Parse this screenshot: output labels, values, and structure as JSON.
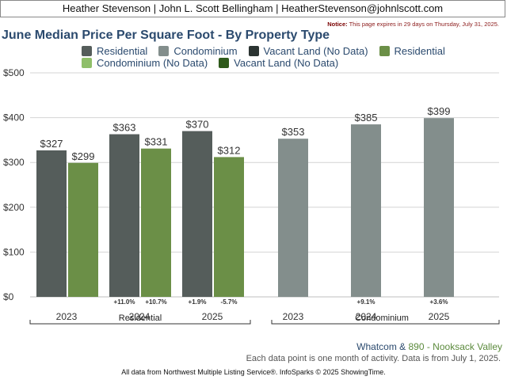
{
  "header": {
    "agent_line": "Heather Stevenson | John L. Scott Bellingham | HeatherStevenson@johnlscott.com",
    "notice_label": "Notice:",
    "notice_text": "This page expires in 29 days on Thursday, July 31, 2025."
  },
  "legend": {
    "items": [
      {
        "label": "Residential",
        "color": "#555d5b"
      },
      {
        "label": "Condominium",
        "color": "#838e8c"
      },
      {
        "label": "Vacant Land (No Data)",
        "color": "#2b3432"
      },
      {
        "label": "Residential",
        "color": "#6b8f47"
      },
      {
        "label": "Condominium (No Data)",
        "color": "#8fbf6a"
      },
      {
        "label": "Vacant Land (No Data)",
        "color": "#2f5a1b"
      }
    ]
  },
  "chart_data": {
    "type": "bar",
    "title": "June Median Price Per Square Foot - By Property Type",
    "y_ticks": [
      "$500",
      "$400",
      "$300",
      "$200",
      "$100",
      "$0"
    ],
    "ylim": [
      0,
      500
    ],
    "grid": true,
    "groups": [
      {
        "name": "Residential",
        "categories": [
          "2023",
          "2024",
          "2025"
        ],
        "series": [
          {
            "name": "Residential",
            "color": "#555d5b",
            "values": [
              327,
              363,
              370
            ],
            "labels": [
              "$327",
              "$363",
              "$370"
            ],
            "changes": [
              "",
              "+11.0%",
              "+1.9%"
            ]
          },
          {
            "name": "Residential",
            "color": "#6b8f47",
            "values": [
              299,
              331,
              312
            ],
            "labels": [
              "$299",
              "$331",
              "$312"
            ],
            "changes": [
              "",
              "+10.7%",
              "-5.7%"
            ]
          }
        ]
      },
      {
        "name": "Condominium",
        "categories": [
          "2023",
          "2024",
          "2025"
        ],
        "series": [
          {
            "name": "Condominium",
            "color": "#838e8c",
            "values": [
              353,
              385,
              399
            ],
            "labels": [
              "$353",
              "$385",
              "$399"
            ],
            "changes": [
              "",
              "+9.1%",
              "+3.6%"
            ]
          }
        ]
      }
    ]
  },
  "footer": {
    "location_a": "Whatcom",
    "location_amp": " & ",
    "location_b": "890 - Nooksack Valley",
    "data_note": "Each data point is one month of activity. Data is from July 1, 2025.",
    "source": "All data from Northwest Multiple Listing Service®. InfoSparks © 2025 ShowingTime."
  }
}
